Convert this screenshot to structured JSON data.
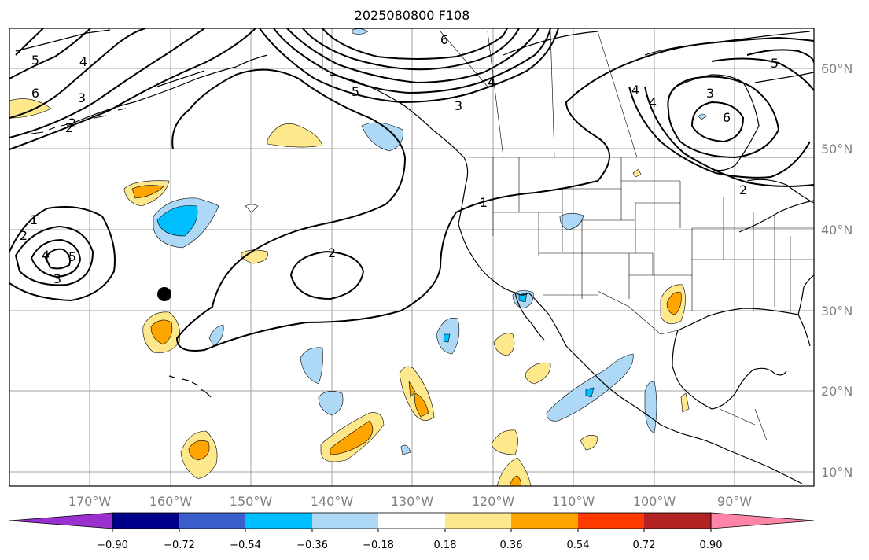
{
  "title": "2025080800 F108",
  "lat_labels": [
    "60°N",
    "50°N",
    "40°N",
    "30°N",
    "20°N",
    "10°N"
  ],
  "lon_labels": [
    "170°W",
    "160°W",
    "150°W",
    "140°W",
    "130°W",
    "120°W",
    "110°W",
    "100°W",
    "90°W"
  ],
  "colorbar": {
    "colors": [
      "#9b30d0",
      "#00008b",
      "#3a5fcd",
      "#00bfff",
      "#add8f6",
      "#ffffff",
      "#fde98b",
      "#ffa500",
      "#ff3a00",
      "#b22222",
      "#ff85a8"
    ],
    "tick_labels": [
      "−0.90",
      "−0.72",
      "−0.54",
      "−0.36",
      "−0.18",
      "0.18",
      "0.36",
      "0.54",
      "0.72",
      "0.90"
    ]
  },
  "contour_labels": [
    "6",
    "5",
    "4",
    "3",
    "2",
    "1",
    "2",
    "4",
    "2",
    "3",
    "5",
    "3",
    "4",
    "6",
    "1",
    "2",
    "5",
    "4",
    "6",
    "2"
  ],
  "marker": "black-dot"
}
